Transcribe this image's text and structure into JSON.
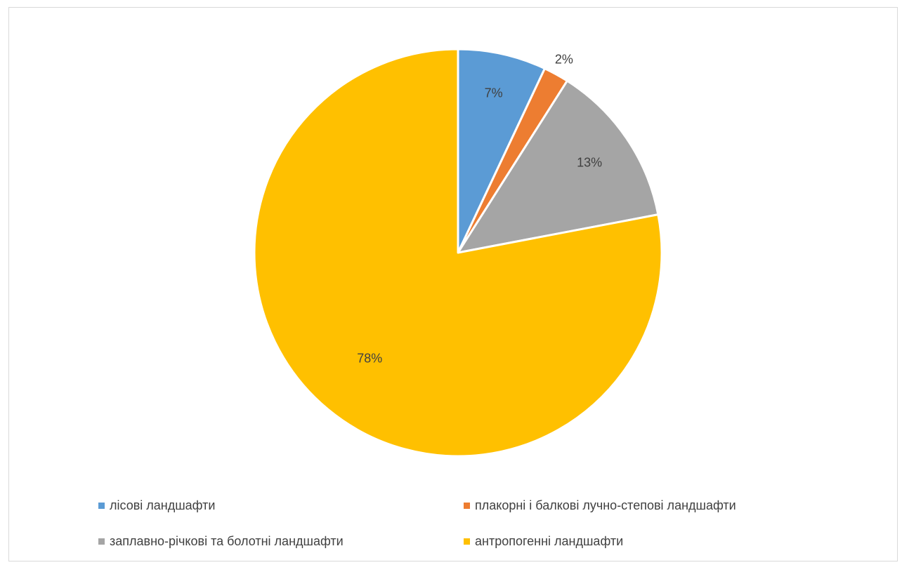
{
  "chart_data": {
    "type": "pie",
    "categories": [
      "лісові ландшафти",
      "плакорні і балкові лучно-степові ландшафти",
      "заплавно-річкові та болотні ландшафти",
      "антропогенні ландшафти"
    ],
    "values": [
      7,
      2,
      13,
      78
    ],
    "data_labels": [
      "7%",
      "2%",
      "13%",
      "78%"
    ],
    "colors": [
      "#5b9bd5",
      "#ed7d31",
      "#a5a5a5",
      "#ffc000"
    ],
    "start_angle": "12 o'clock",
    "direction": "clockwise",
    "legend_position": "bottom",
    "title": ""
  },
  "legend": {
    "items": [
      {
        "label": "лісові ландшафти",
        "color": "#5b9bd5"
      },
      {
        "label": "плакорні і балкові лучно-степові ландшафти",
        "color": "#ed7d31"
      },
      {
        "label": "заплавно-річкові та болотні ландшафти",
        "color": "#a5a5a5"
      },
      {
        "label": "антропогенні ландшафти",
        "color": "#ffc000"
      }
    ]
  }
}
